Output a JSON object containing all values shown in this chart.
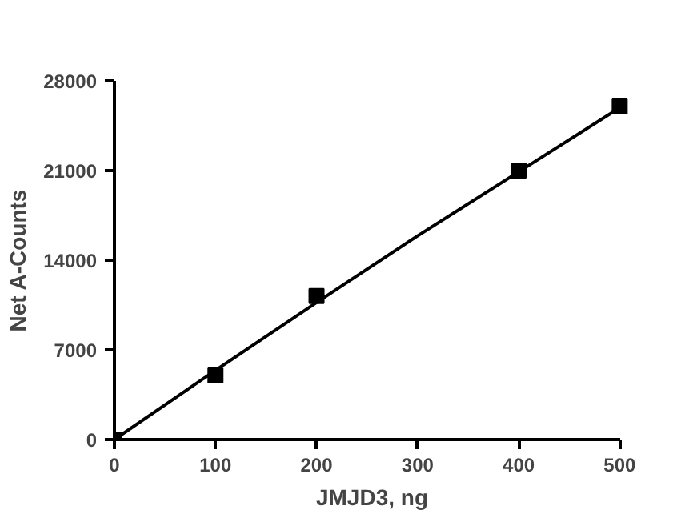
{
  "chart_data": {
    "type": "scatter",
    "xlabel": "JMJD3, ng",
    "ylabel": "Net A-Counts",
    "xlim": [
      0,
      500
    ],
    "ylim": [
      0,
      28000
    ],
    "xticks": [
      0,
      100,
      200,
      300,
      400,
      500
    ],
    "yticks": [
      0,
      7000,
      14000,
      21000,
      28000
    ],
    "grid": false,
    "series": [
      {
        "color": "#000000",
        "marker": "square",
        "x": [
          0,
          100,
          200,
          400,
          500
        ],
        "values": [
          0,
          5000,
          11200,
          21000,
          26000
        ]
      },
      {
        "type": "line",
        "color": "#000000",
        "marker": "none",
        "line_style": "solid",
        "x": [
          0,
          100,
          200,
          300,
          400,
          500
        ],
        "values": [
          0,
          5400,
          10700,
          15900,
          20900,
          25900
        ]
      }
    ]
  }
}
